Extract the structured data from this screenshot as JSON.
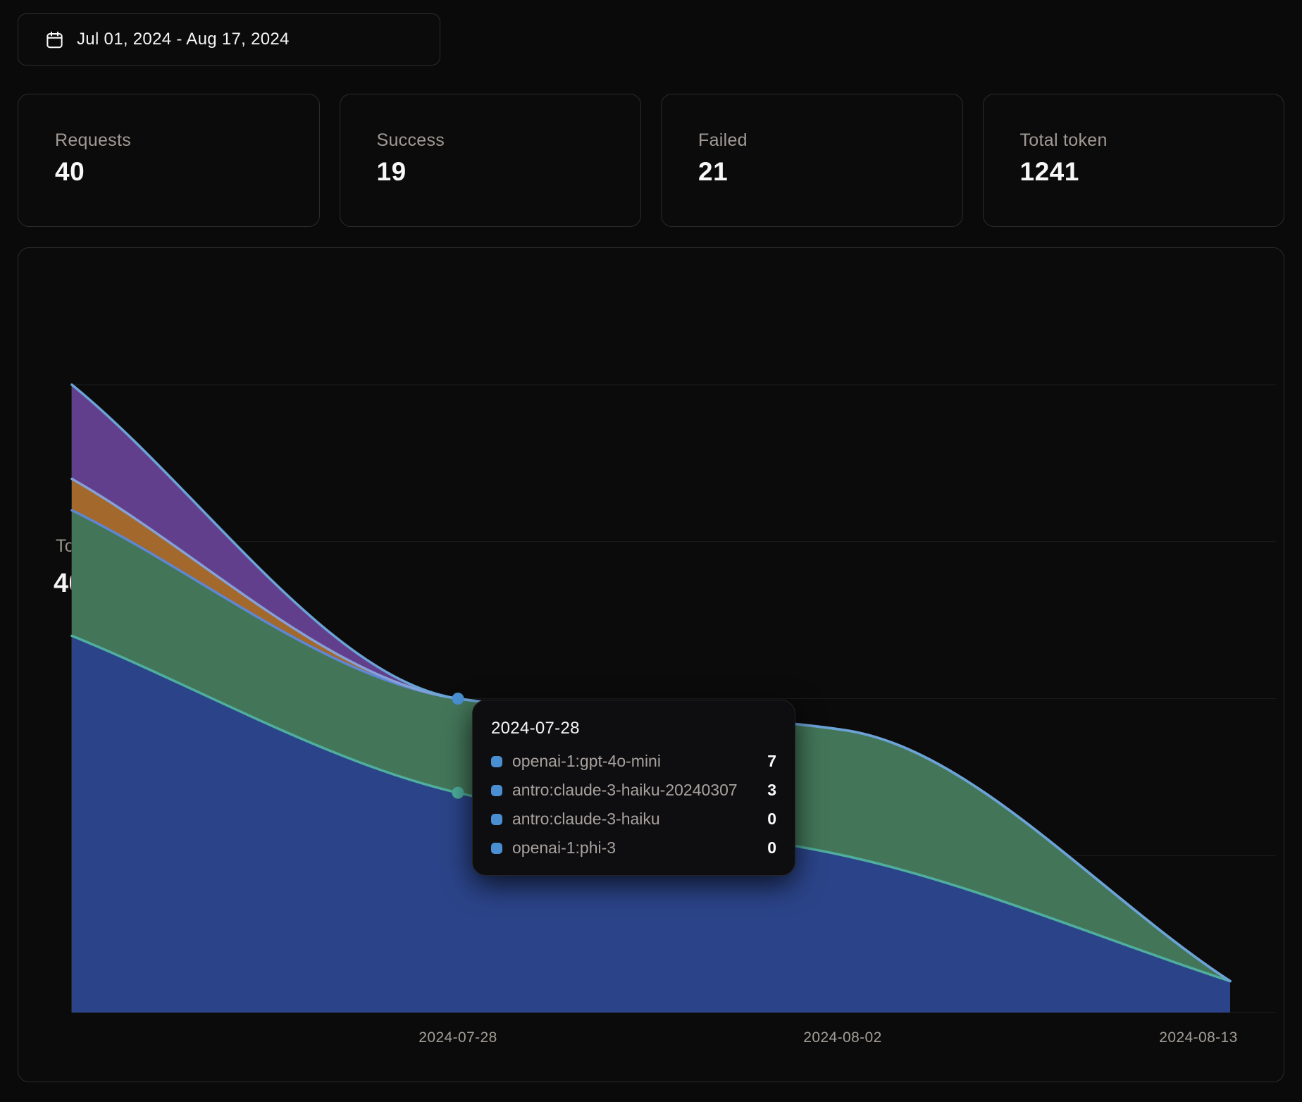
{
  "date_range": {
    "label": "Jul 01, 2024 - Aug 17, 2024"
  },
  "stats": [
    {
      "label": "Requests",
      "value": "40"
    },
    {
      "label": "Success",
      "value": "19"
    },
    {
      "label": "Failed",
      "value": "21"
    },
    {
      "label": "Total token",
      "value": "1241"
    }
  ],
  "chart_card": {
    "subtitle": "Total Requests",
    "title": "40 Requests"
  },
  "tooltip": {
    "title": "2024-07-28",
    "swatch_color": "#4a8fd1",
    "rows": [
      {
        "label": "openai-1:gpt-4o-mini",
        "value": "7"
      },
      {
        "label": "antro:claude-3-haiku-20240307",
        "value": "3"
      },
      {
        "label": "antro:claude-3-haiku",
        "value": "0"
      },
      {
        "label": "openai-1:phi-3",
        "value": "0"
      }
    ]
  },
  "chart_data": {
    "type": "area",
    "stacked": true,
    "smooth": true,
    "x": [
      "",
      "2024-07-28",
      "2024-08-02",
      "2024-08-13"
    ],
    "x_ticks_shown": [
      "2024-07-28",
      "2024-08-02",
      "2024-08-13"
    ],
    "series": [
      {
        "name": "openai-1:gpt-4o-mini",
        "values": [
          12,
          7,
          5,
          1
        ],
        "fill": "#2b4489",
        "line": "#4fae9d"
      },
      {
        "name": "antro:claude-3-haiku-20240307",
        "values": [
          4,
          3,
          4,
          0
        ],
        "fill": "#437659",
        "line": "#5f86d2"
      },
      {
        "name": "antro:claude-3-haiku",
        "values": [
          1,
          0,
          0,
          0
        ],
        "fill": "#a2682c",
        "line": "#86a0d8"
      },
      {
        "name": "openai-1:phi-3",
        "values": [
          3,
          0,
          0,
          0
        ],
        "fill": "#613f8c",
        "line": "#6ba3d6"
      }
    ],
    "ylim": [
      0,
      20
    ],
    "gridlines": [
      0,
      5,
      10,
      15,
      20
    ],
    "legend": "none",
    "grid": true,
    "highlight": {
      "x_index": 1,
      "x_label": "2024-07-28",
      "dots": [
        {
          "series": "openai-1:gpt-4o-mini",
          "stack_value": 7,
          "color": "#4dae9d"
        },
        {
          "series": "openai-1:phi-3",
          "stack_value": 10,
          "color": "#4a90d2"
        }
      ]
    }
  },
  "colors": {
    "page_bg": "#0a0a0a",
    "card_bg": "#0b0b0b",
    "card_border": "#2b2b29",
    "label_gray": "#a19a94",
    "text_white": "#f7f7f7",
    "gridline": "#1c1c1c",
    "axis_line": "#302f2c",
    "axis_label": "#a39e98",
    "tooltip_bg": "#0e0e10"
  }
}
